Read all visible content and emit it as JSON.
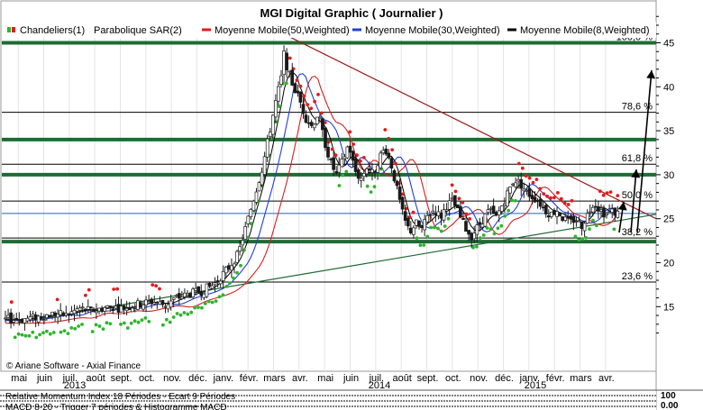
{
  "window": {
    "title": "MGI Digital Graphic  ( Journalier )"
  },
  "copyright": "© Ariane Software - Axial Finance",
  "colors": {
    "candle": "#1a1a1a",
    "candle_up": "#ffffff",
    "sar_green": "#2db52d",
    "sar_red": "#e8191b",
    "ma50": "#d62020",
    "ma30": "#2040d8",
    "ma8": "#000000",
    "fib_band": "#1e6b34",
    "trend_down": "#9b1c1c",
    "trend_up": "#1e6b34",
    "hline_blue": "#2060c0"
  },
  "legend": [
    {
      "label": "Chandeliers(1)",
      "color": "#2db52d",
      "icon": "candle-icon"
    },
    {
      "label": "Parabolique SAR(2)",
      "color": "#000000",
      "icon": "none"
    },
    {
      "label": "Moyenne Mobile(50,Weighted)",
      "color": "#e8191b",
      "icon": "line-icon"
    },
    {
      "label": "Moyenne Mobile(30,Weighted)",
      "color": "#2040d8",
      "icon": "line-icon"
    },
    {
      "label": "Moyenne Mobile(8,Weighted)",
      "color": "#000000",
      "icon": "line-icon"
    }
  ],
  "bottom_panels": [
    "Relative Momentum Index 18 Périodes - Ecart 9 Périodes",
    "MACD 8-20 - Trigger 7 périodes & Histogramme MACD"
  ],
  "chart_data": {
    "type": "candlestick",
    "title": "MGI Digital Graphic  ( Journalier )",
    "y_ticks": [
      15,
      20,
      25,
      30,
      35,
      40,
      45
    ],
    "ylim": [
      11.5,
      49
    ],
    "x_month_labels": [
      "mai",
      "juin",
      "juil.",
      "août",
      "sept.",
      "oct.",
      "nov.",
      "déc.",
      "janv.",
      "févr.",
      "mars",
      "avr.",
      "mai",
      "juin",
      "juil.",
      "août",
      "sept.",
      "oct.",
      "nov.",
      "déc.",
      "janv.",
      "févr.",
      "mars",
      "avr."
    ],
    "x_year_labels": [
      "2013",
      "2014",
      "2015"
    ],
    "fibonacci_levels": [
      {
        "label": "100,0 %",
        "value": 45.0
      },
      {
        "label": "78,6 %",
        "value": 37.1
      },
      {
        "label": "61,8 %",
        "value": 31.2
      },
      {
        "label": "50,0 %",
        "value": 27.0
      },
      {
        "label": "38,2 %",
        "value": 22.8
      },
      {
        "label": "23,6 %",
        "value": 17.8
      }
    ],
    "thick_bands": [
      45.0,
      34.0,
      30.0,
      22.4
    ],
    "support_line_value": 25.6,
    "price_path": [
      [
        0,
        13.5
      ],
      [
        6,
        13.6
      ],
      [
        10,
        13.8
      ],
      [
        16,
        14.2
      ],
      [
        20,
        14.0
      ],
      [
        24,
        14.8
      ],
      [
        28,
        14.5
      ],
      [
        34,
        15.0
      ],
      [
        38,
        14.8
      ],
      [
        44,
        15.3
      ],
      [
        48,
        15.6
      ],
      [
        52,
        15.2
      ],
      [
        56,
        16.0
      ],
      [
        60,
        16.4
      ],
      [
        64,
        16.8
      ],
      [
        68,
        17.5
      ],
      [
        70,
        18.3
      ],
      [
        73,
        19.5
      ],
      [
        76,
        21.0
      ],
      [
        78,
        23.5
      ],
      [
        80,
        26.0
      ],
      [
        82,
        28.5
      ],
      [
        84,
        31.0
      ],
      [
        86,
        34.5
      ],
      [
        88,
        38.0
      ],
      [
        90,
        41.0
      ],
      [
        91,
        44.0
      ],
      [
        92,
        42.0
      ],
      [
        94,
        40.0
      ],
      [
        96,
        38.5
      ],
      [
        98,
        36.5
      ],
      [
        100,
        35.5
      ],
      [
        102,
        37.0
      ],
      [
        104,
        34.0
      ],
      [
        106,
        31.5
      ],
      [
        108,
        30.0
      ],
      [
        110,
        31.5
      ],
      [
        112,
        33.5
      ],
      [
        114,
        30.5
      ],
      [
        116,
        29.5
      ],
      [
        118,
        31.0
      ],
      [
        120,
        30.0
      ],
      [
        122,
        32.0
      ],
      [
        124,
        33.0
      ],
      [
        126,
        31.0
      ],
      [
        128,
        28.0
      ],
      [
        130,
        25.0
      ],
      [
        132,
        23.5
      ],
      [
        134,
        24.5
      ],
      [
        136,
        23.8
      ],
      [
        138,
        25.5
      ],
      [
        140,
        26.0
      ],
      [
        142,
        25.2
      ],
      [
        144,
        26.5
      ],
      [
        146,
        27.0
      ],
      [
        148,
        25.5
      ],
      [
        150,
        24.0
      ],
      [
        152,
        23.0
      ],
      [
        154,
        24.0
      ],
      [
        156,
        25.0
      ],
      [
        158,
        26.0
      ],
      [
        160,
        25.0
      ],
      [
        162,
        26.5
      ],
      [
        164,
        28.0
      ],
      [
        166,
        29.5
      ],
      [
        168,
        29.0
      ],
      [
        170,
        28.0
      ],
      [
        172,
        27.5
      ],
      [
        174,
        27.0
      ],
      [
        176,
        26.0
      ],
      [
        178,
        25.5
      ],
      [
        180,
        26.0
      ],
      [
        182,
        25.0
      ],
      [
        184,
        24.5
      ],
      [
        186,
        25.0
      ],
      [
        188,
        24.2
      ],
      [
        190,
        25.5
      ],
      [
        192,
        27.0
      ],
      [
        194,
        26.0
      ],
      [
        196,
        25.5
      ],
      [
        198,
        25.8
      ],
      [
        200,
        25.6
      ]
    ]
  }
}
